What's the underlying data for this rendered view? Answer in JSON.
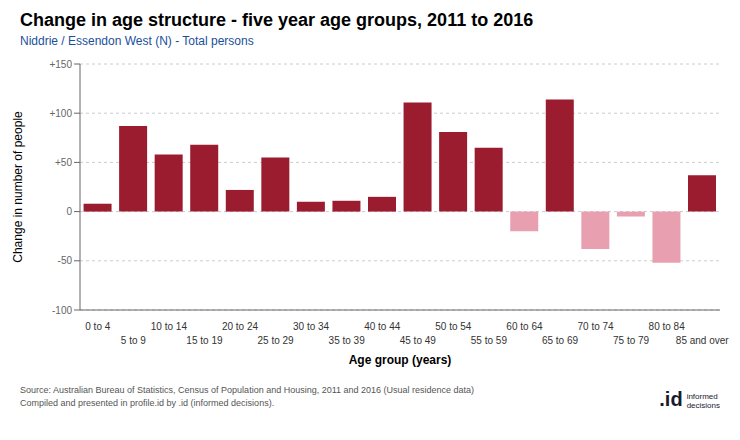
{
  "chart_data": {
    "type": "bar",
    "title": "Change in age structure - five year age groups, 2011 to 2016",
    "subtitle": "Niddrie / Essendon West (N) - Total persons",
    "xlabel": "Age group (years)",
    "ylabel": "Change in number of people",
    "annotations": [
      "Source: Australian Bureau of Statistics, Census of Population and Housing, 2011 and 2016 (Usual residence data)",
      "Compiled and presented in profile.id by .id (informed decisions).",
      ".id",
      "informed\ndecisions"
    ],
    "categories": [
      "0 to 4",
      "5 to 9",
      "10 to 14",
      "15 to 19",
      "20 to 24",
      "25 to 29",
      "30 to 34",
      "35 to 39",
      "40 to 44",
      "45 to 49",
      "50 to 54",
      "55 to 59",
      "60 to 64",
      "65 to 69",
      "70 to 74",
      "75 to 79",
      "80 to 84",
      "85 and over"
    ],
    "values": [
      8,
      87,
      58,
      68,
      22,
      55,
      10,
      11,
      15,
      111,
      81,
      65,
      -20,
      114,
      -38,
      -5,
      -52,
      37
    ],
    "colors": [
      "#9b1c2e",
      "#9b1c2e",
      "#9b1c2e",
      "#9b1c2e",
      "#9b1c2e",
      "#9b1c2e",
      "#9b1c2e",
      "#9b1c2e",
      "#9b1c2e",
      "#9b1c2e",
      "#9b1c2e",
      "#9b1c2e",
      "#e8a0b0",
      "#9b1c2e",
      "#e8a0b0",
      "#e8a0b0",
      "#e8a0b0",
      "#9b1c2e"
    ],
    "ylim": [
      -100,
      150
    ],
    "yticks": [
      -100,
      -50,
      0,
      {
        "value": 50,
        "label": "+50"
      },
      {
        "value": 100,
        "label": "+100"
      },
      {
        "value": 150,
        "label": "+150"
      }
    ],
    "grid": true
  }
}
